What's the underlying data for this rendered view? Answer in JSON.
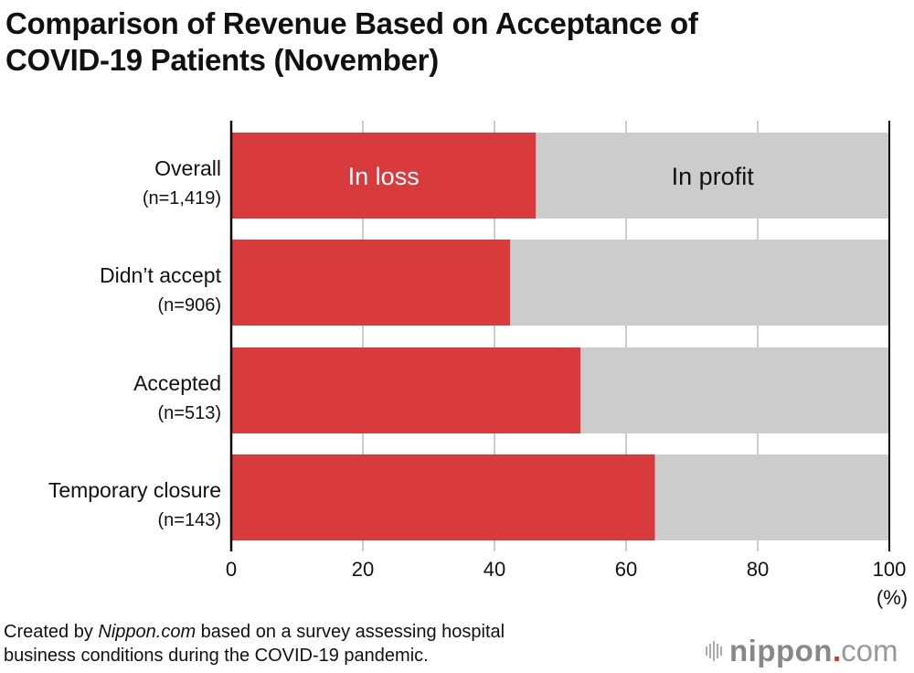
{
  "chart_data": {
    "type": "bar",
    "orientation": "horizontal",
    "stacked": true,
    "title": "Comparison of Revenue Based on Acceptance of COVID-19 Patients (November)",
    "title_lines": [
      "Comparison of Revenue Based on Acceptance of",
      "COVID-19 Patients (November)"
    ],
    "categories": [
      {
        "label": "Overall",
        "n": "(n=1,419)"
      },
      {
        "label": "Didn’t accept",
        "n": "(n=906)"
      },
      {
        "label": "Accepted",
        "n": "(n=513)"
      },
      {
        "label": "Temporary closure",
        "n": "(n=143)"
      }
    ],
    "series": [
      {
        "name": "In loss",
        "color": "#d93a3b",
        "values": [
          46.3,
          42.4,
          53.1,
          64.4
        ]
      },
      {
        "name": "In profit",
        "color": "#cccccc",
        "values": [
          53.7,
          57.6,
          46.9,
          35.6
        ]
      }
    ],
    "xlabel": "(%)",
    "xlim": [
      0,
      100
    ],
    "xticks": [
      "0",
      "20",
      "40",
      "60",
      "80",
      "100"
    ],
    "grid": true,
    "legend_placement": "inside-first-bar"
  },
  "footer": {
    "prefix": "Created by ",
    "source": "Nippon.com",
    "suffix_line1": " based on a survey assessing hospital",
    "line2": "business conditions during the COVID-19 pandemic."
  },
  "logo": {
    "name": "nippon",
    "dot": ".",
    "tld": "com"
  }
}
